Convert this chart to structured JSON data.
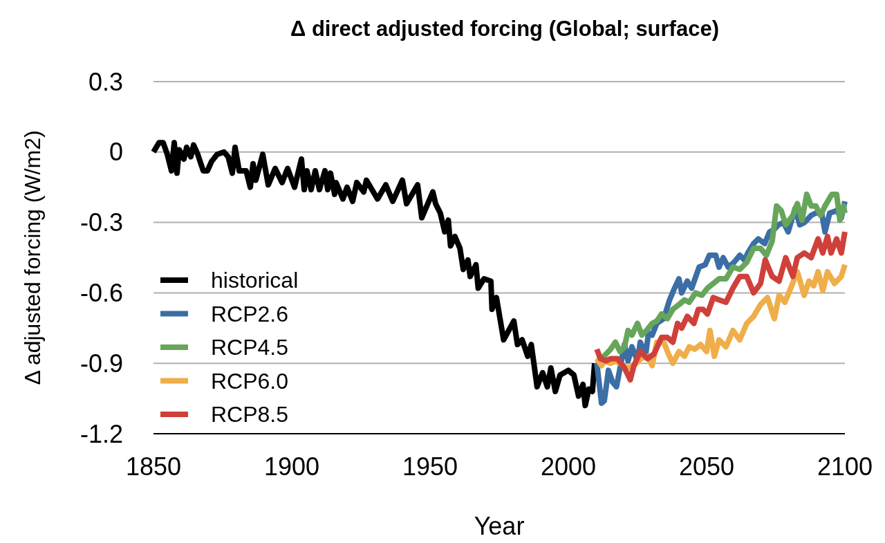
{
  "chart_data": {
    "type": "line",
    "title": "Δ direct adjusted forcing (Global; surface)",
    "xlabel": "Year",
    "ylabel": "Δ adjusted forcing (W/m2)",
    "xlim": [
      1850,
      2100
    ],
    "xticks": [
      1850,
      1900,
      1950,
      2000,
      2050,
      2100
    ],
    "ylim": [
      -1.2,
      0.3
    ],
    "yticks": [
      0.3,
      0,
      -0.3,
      -0.6,
      -0.9,
      -1.2
    ],
    "grid": "y",
    "legend": "left",
    "line_style": "solid",
    "marker": "none",
    "series": [
      {
        "name": "historical",
        "color": "#000000",
        "x": [
          1850,
          1852,
          1853.5,
          1855,
          1856.5,
          1857.5,
          1858.5,
          1859.3,
          1861,
          1862,
          1863.5,
          1864.5,
          1866,
          1868,
          1869.5,
          1871,
          1873,
          1875.5,
          1877,
          1878.5,
          1879.5,
          1881,
          1883.5,
          1885,
          1886,
          1887,
          1889.5,
          1891.5,
          1894,
          1896.5,
          1898.5,
          1901,
          1903.5,
          1904.5,
          1905.5,
          1907,
          1908.5,
          1910,
          1912,
          1913,
          1914,
          1915.5,
          1916,
          1918.5,
          1920,
          1922,
          1923.5,
          1926,
          1927,
          1931,
          1934,
          1936.5,
          1940,
          1941.5,
          1945.5,
          1947,
          1951,
          1952,
          1953.7,
          1955.3,
          1956.6,
          1957.4,
          1959,
          1960.8,
          1962,
          1963.7,
          1964.5,
          1966.6,
          1967.4,
          1969.5,
          1972,
          1972.4,
          1974,
          1976.6,
          1980.3,
          1981.6,
          1983.3,
          1985.3,
          1986.6,
          1988.7,
          1990.7,
          1992.4,
          1993.7,
          1995.3,
          1997,
          2000,
          2002,
          2003.7,
          2005.3,
          2006.1,
          2007.4,
          2008.7,
          2009.5
        ],
        "values": [
          0,
          0.04,
          0.04,
          -0.01,
          -0.08,
          0.04,
          -0.09,
          0.01,
          -0.03,
          0.02,
          -0.02,
          0.03,
          -0.01,
          -0.08,
          -0.08,
          -0.04,
          -0.01,
          0,
          -0.02,
          -0.09,
          0.02,
          -0.08,
          -0.08,
          -0.15,
          -0.05,
          -0.12,
          -0.01,
          -0.14,
          -0.07,
          -0.13,
          -0.07,
          -0.15,
          -0.03,
          -0.16,
          -0.08,
          -0.16,
          -0.08,
          -0.16,
          -0.08,
          -0.16,
          -0.09,
          -0.18,
          -0.13,
          -0.2,
          -0.15,
          -0.21,
          -0.13,
          -0.17,
          -0.12,
          -0.2,
          -0.14,
          -0.21,
          -0.12,
          -0.22,
          -0.14,
          -0.28,
          -0.17,
          -0.22,
          -0.26,
          -0.34,
          -0.29,
          -0.4,
          -0.36,
          -0.41,
          -0.5,
          -0.46,
          -0.53,
          -0.48,
          -0.58,
          -0.54,
          -0.55,
          -0.67,
          -0.62,
          -0.8,
          -0.72,
          -0.82,
          -0.8,
          -0.87,
          -0.82,
          -1,
          -0.94,
          -1,
          -0.92,
          -1.02,
          -0.95,
          -0.93,
          -0.95,
          -1.04,
          -0.99,
          -1.08,
          -1.01,
          -1.02,
          -0.9
        ]
      },
      {
        "name": "RCP2.6",
        "color": "#3b6ea5",
        "x": [
          2010.3,
          2012,
          2013,
          2014.5,
          2016,
          2017.4,
          2018.7,
          2020.3,
          2021.6,
          2023,
          2025,
          2026,
          2028,
          2029,
          2030.3,
          2032,
          2034.5,
          2036.6,
          2038.4,
          2040,
          2041,
          2043,
          2044.6,
          2047.3,
          2049.5,
          2051,
          2053.3,
          2054.5,
          2056,
          2057.8,
          2059.9,
          2062,
          2063.7,
          2064.9,
          2067,
          2068.7,
          2071,
          2072.8,
          2074.4,
          2076,
          2077.8,
          2079.5,
          2082,
          2083.7,
          2085.4,
          2087.8,
          2089.5,
          2091.6,
          2092.8,
          2094.5,
          2097,
          2098.7,
          2100
        ],
        "values": [
          -0.9,
          -1.07,
          -1.06,
          -0.93,
          -0.98,
          -1,
          -0.92,
          -0.82,
          -0.89,
          -0.83,
          -0.89,
          -0.81,
          -0.86,
          -0.77,
          -0.78,
          -0.73,
          -0.71,
          -0.63,
          -0.58,
          -0.54,
          -0.6,
          -0.55,
          -0.58,
          -0.49,
          -0.48,
          -0.44,
          -0.44,
          -0.49,
          -0.45,
          -0.49,
          -0.47,
          -0.44,
          -0.46,
          -0.43,
          -0.39,
          -0.37,
          -0.39,
          -0.34,
          -0.33,
          -0.31,
          -0.3,
          -0.34,
          -0.24,
          -0.31,
          -0.3,
          -0.27,
          -0.26,
          -0.26,
          -0.34,
          -0.26,
          -0.25,
          -0.28,
          -0.21
        ]
      },
      {
        "name": "RCP4.5",
        "color": "#67a55b",
        "x": [
          2010.3,
          2012,
          2013.7,
          2015.3,
          2017,
          2018.7,
          2020.3,
          2021.6,
          2023,
          2025,
          2026.6,
          2028.3,
          2030.3,
          2032,
          2033.7,
          2035.8,
          2037.8,
          2040,
          2042,
          2043.7,
          2046,
          2048.3,
          2050.3,
          2052.4,
          2054.5,
          2057,
          2059.5,
          2062,
          2064.5,
          2067,
          2069.5,
          2071.6,
          2073.7,
          2075.3,
          2077,
          2078.6,
          2081.2,
          2082.8,
          2084.5,
          2086.2,
          2087.8,
          2089.5,
          2091.2,
          2092.8,
          2095.3,
          2097,
          2098.2,
          2099.5,
          2100
        ],
        "values": [
          -0.88,
          -0.88,
          -0.86,
          -0.84,
          -0.81,
          -0.85,
          -0.83,
          -0.76,
          -0.78,
          -0.73,
          -0.78,
          -0.76,
          -0.73,
          -0.72,
          -0.69,
          -0.71,
          -0.67,
          -0.65,
          -0.63,
          -0.64,
          -0.6,
          -0.61,
          -0.58,
          -0.56,
          -0.54,
          -0.54,
          -0.49,
          -0.5,
          -0.47,
          -0.41,
          -0.41,
          -0.44,
          -0.38,
          -0.23,
          -0.25,
          -0.31,
          -0.27,
          -0.22,
          -0.29,
          -0.18,
          -0.23,
          -0.23,
          -0.27,
          -0.23,
          -0.18,
          -0.18,
          -0.29,
          -0.23,
          -0.26
        ]
      },
      {
        "name": "RCP6.0",
        "color": "#efae4a",
        "x": [
          2010.3,
          2012,
          2013.2,
          2015.3,
          2017,
          2018.7,
          2021.2,
          2023.7,
          2026.2,
          2028.7,
          2030.3,
          2032,
          2034.5,
          2036.2,
          2037.8,
          2040,
          2042,
          2043.7,
          2045.7,
          2047.8,
          2050,
          2051.2,
          2052.8,
          2054.5,
          2057,
          2059.5,
          2062,
          2064.5,
          2067,
          2069.5,
          2072,
          2074.5,
          2076.2,
          2078.3,
          2080.4,
          2082.8,
          2085.3,
          2087,
          2088.7,
          2090.3,
          2092,
          2093.7,
          2096.2,
          2098.7,
          2100
        ],
        "values": [
          -0.88,
          -0.91,
          -0.89,
          -0.9,
          -0.89,
          -0.9,
          -0.92,
          -0.91,
          -0.88,
          -0.87,
          -0.91,
          -0.81,
          -0.81,
          -0.86,
          -0.9,
          -0.85,
          -0.87,
          -0.83,
          -0.84,
          -0.82,
          -0.85,
          -0.76,
          -0.87,
          -0.8,
          -0.83,
          -0.76,
          -0.8,
          -0.73,
          -0.7,
          -0.65,
          -0.62,
          -0.71,
          -0.61,
          -0.64,
          -0.58,
          -0.51,
          -0.61,
          -0.55,
          -0.57,
          -0.51,
          -0.59,
          -0.51,
          -0.56,
          -0.53,
          -0.48
        ]
      },
      {
        "name": "RCP8.5",
        "color": "#d0403a",
        "x": [
          2010.3,
          2011.6,
          2013.7,
          2015.3,
          2017.8,
          2020.3,
          2022.4,
          2023.7,
          2026,
          2028.6,
          2031,
          2033.7,
          2035.8,
          2037.8,
          2039.5,
          2041,
          2043,
          2045.4,
          2047,
          2048.7,
          2050.3,
          2052.4,
          2054.5,
          2057,
          2059.5,
          2062,
          2064.5,
          2067,
          2069.5,
          2071.2,
          2073.7,
          2076.2,
          2078.6,
          2081.2,
          2082.8,
          2085.3,
          2087.8,
          2090.3,
          2092,
          2093.7,
          2095,
          2097,
          2098.7,
          2100
        ],
        "values": [
          -0.84,
          -0.88,
          -0.89,
          -0.88,
          -0.88,
          -0.92,
          -0.97,
          -0.91,
          -0.85,
          -0.88,
          -0.86,
          -0.79,
          -0.79,
          -0.81,
          -0.73,
          -0.75,
          -0.7,
          -0.73,
          -0.67,
          -0.67,
          -0.69,
          -0.62,
          -0.63,
          -0.64,
          -0.58,
          -0.53,
          -0.53,
          -0.6,
          -0.56,
          -0.46,
          -0.53,
          -0.55,
          -0.45,
          -0.53,
          -0.45,
          -0.43,
          -0.45,
          -0.37,
          -0.43,
          -0.36,
          -0.43,
          -0.37,
          -0.43,
          -0.34
        ]
      }
    ]
  }
}
